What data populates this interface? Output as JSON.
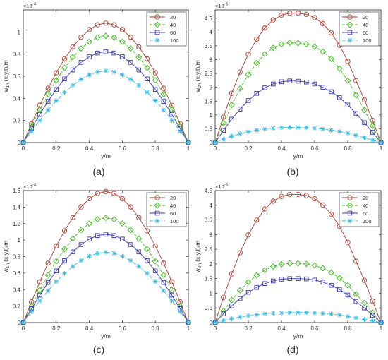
{
  "legend_labels": [
    "20",
    "40",
    "60",
    "100"
  ],
  "series_colors": [
    "#b03a2e",
    "#33bb11",
    "#3535b8",
    "#39b8e0"
  ],
  "series_markers": [
    "circle",
    "diamond",
    "square",
    "asterisk"
  ],
  "chart_data": [
    {
      "type": "line",
      "panel": "(a)",
      "ylabel_main": "w",
      "ylabel_sub": "1h",
      "ylabel_rest": "(x,y,t)/m",
      "xlabel": "y/m",
      "exponent_base": "×10",
      "exponent_power": "-4",
      "xlim": [
        0,
        1
      ],
      "ylim": [
        0,
        1.2
      ],
      "xticks": [
        0,
        0.2,
        0.4,
        0.6,
        0.8,
        1
      ],
      "xtick_labels": [
        "0",
        "0.2",
        "0.4",
        "0.6",
        "0.8",
        "1"
      ],
      "yticks": [
        0,
        0.2,
        0.4,
        0.6,
        0.8,
        1
      ],
      "ytick_labels": [
        "0",
        "0.2",
        "0.4",
        "0.6",
        "0.8",
        "1"
      ],
      "x": [
        0,
        0.05,
        0.1,
        0.15,
        0.2,
        0.25,
        0.3,
        0.35,
        0.4,
        0.45,
        0.5,
        0.55,
        0.6,
        0.65,
        0.7,
        0.75,
        0.8,
        0.85,
        0.9,
        0.95,
        1
      ],
      "series": [
        {
          "name": "20",
          "values": [
            0,
            0.17,
            0.337,
            0.491,
            0.631,
            0.757,
            0.865,
            0.953,
            1.022,
            1.065,
            1.08,
            1.065,
            1.022,
            0.953,
            0.865,
            0.757,
            0.631,
            0.491,
            0.337,
            0.17,
            0
          ]
        },
        {
          "name": "40",
          "values": [
            0,
            0.152,
            0.3,
            0.438,
            0.564,
            0.676,
            0.772,
            0.851,
            0.912,
            0.951,
            0.965,
            0.951,
            0.912,
            0.851,
            0.772,
            0.676,
            0.564,
            0.438,
            0.3,
            0.152,
            0
          ]
        },
        {
          "name": "60",
          "values": [
            0,
            0.129,
            0.255,
            0.373,
            0.48,
            0.576,
            0.657,
            0.725,
            0.776,
            0.81,
            0.822,
            0.81,
            0.776,
            0.725,
            0.657,
            0.576,
            0.48,
            0.373,
            0.255,
            0.129,
            0
          ]
        },
        {
          "name": "100",
          "values": [
            0,
            0.102,
            0.202,
            0.294,
            0.379,
            0.454,
            0.519,
            0.572,
            0.613,
            0.639,
            0.648,
            0.639,
            0.613,
            0.572,
            0.519,
            0.454,
            0.379,
            0.294,
            0.202,
            0.102,
            0
          ]
        }
      ]
    },
    {
      "type": "line",
      "panel": "(b)",
      "ylabel_main": "w",
      "ylabel_sub": "2h",
      "ylabel_rest": "(x,y,t)/m",
      "xlabel": "y/m",
      "exponent_base": "×10",
      "exponent_power": "-5",
      "xlim": [
        0,
        1
      ],
      "ylim": [
        0,
        4.8
      ],
      "xticks": [
        0,
        0.2,
        0.4,
        0.6,
        0.8,
        1
      ],
      "xtick_labels": [
        "0",
        "0.2",
        "0.4",
        "0.6",
        "0.8",
        "1"
      ],
      "yticks": [
        0,
        0.5,
        1,
        1.5,
        2,
        2.5,
        3,
        3.5,
        4,
        4.5
      ],
      "ytick_labels": [
        "0",
        "0.5",
        "1",
        "1.5",
        "2",
        "2.5",
        "3",
        "3.5",
        "4",
        "4.5"
      ],
      "x": [
        0,
        0.05,
        0.1,
        0.15,
        0.2,
        0.25,
        0.3,
        0.35,
        0.4,
        0.45,
        0.5,
        0.55,
        0.6,
        0.65,
        0.7,
        0.75,
        0.8,
        0.85,
        0.9,
        0.95,
        1
      ],
      "series": [
        {
          "name": "20",
          "values": [
            0,
            0.92,
            1.78,
            2.55,
            3.2,
            3.74,
            4.15,
            4.44,
            4.61,
            4.68,
            4.68,
            4.64,
            4.52,
            4.3,
            3.97,
            3.52,
            2.94,
            2.24,
            1.55,
            0.8,
            0
          ]
        },
        {
          "name": "40",
          "values": [
            0,
            0.7,
            1.36,
            1.95,
            2.46,
            2.88,
            3.2,
            3.43,
            3.56,
            3.61,
            3.6,
            3.56,
            3.47,
            3.29,
            3.03,
            2.68,
            2.24,
            1.72,
            1.18,
            0.6,
            0
          ]
        },
        {
          "name": "60",
          "values": [
            0,
            0.44,
            0.85,
            1.21,
            1.52,
            1.78,
            1.98,
            2.12,
            2.2,
            2.23,
            2.22,
            2.19,
            2.12,
            2.0,
            1.84,
            1.63,
            1.36,
            1.05,
            0.72,
            0.37,
            0
          ]
        },
        {
          "name": "100",
          "values": [
            0,
            0.12,
            0.23,
            0.32,
            0.39,
            0.45,
            0.49,
            0.52,
            0.54,
            0.55,
            0.55,
            0.54,
            0.52,
            0.49,
            0.45,
            0.4,
            0.34,
            0.26,
            0.18,
            0.09,
            0
          ]
        }
      ]
    },
    {
      "type": "line",
      "panel": "(c)",
      "ylabel_main": "w",
      "ylabel_sub": "1h",
      "ylabel_rest": "(x,y,t)/m",
      "xlabel": "y/m",
      "exponent_base": "×10",
      "exponent_power": "-4",
      "xlim": [
        0,
        1
      ],
      "ylim": [
        0,
        1.6
      ],
      "xticks": [
        0,
        0.2,
        0.4,
        0.6,
        0.8,
        1
      ],
      "xtick_labels": [
        "0",
        "0.2",
        "0.4",
        "0.6",
        "0.8",
        "1"
      ],
      "yticks": [
        0,
        0.2,
        0.4,
        0.6,
        0.8,
        1,
        1.2,
        1.4,
        1.6
      ],
      "ytick_labels": [
        "0",
        "0.2",
        "0.4",
        "0.6",
        "0.8",
        "1",
        "1.2",
        "1.4",
        "1.6"
      ],
      "x": [
        0,
        0.05,
        0.1,
        0.15,
        0.2,
        0.25,
        0.3,
        0.35,
        0.4,
        0.45,
        0.5,
        0.55,
        0.6,
        0.65,
        0.7,
        0.75,
        0.8,
        0.85,
        0.9,
        0.95,
        1
      ],
      "series": [
        {
          "name": "20",
          "values": [
            0,
            0.25,
            0.494,
            0.722,
            0.929,
            1.113,
            1.272,
            1.402,
            1.502,
            1.566,
            1.588,
            1.566,
            1.502,
            1.402,
            1.272,
            1.113,
            0.929,
            0.722,
            0.494,
            0.25,
            0
          ]
        },
        {
          "name": "40",
          "values": [
            0,
            0.2,
            0.395,
            0.577,
            0.743,
            0.89,
            1.017,
            1.122,
            1.201,
            1.252,
            1.27,
            1.252,
            1.201,
            1.122,
            1.017,
            0.89,
            0.743,
            0.577,
            0.395,
            0.2,
            0
          ]
        },
        {
          "name": "60",
          "values": [
            0,
            0.168,
            0.333,
            0.486,
            0.626,
            0.75,
            0.857,
            0.945,
            1.012,
            1.055,
            1.07,
            1.055,
            1.012,
            0.945,
            0.857,
            0.75,
            0.626,
            0.486,
            0.333,
            0.168,
            0
          ]
        },
        {
          "name": "100",
          "values": [
            0,
            0.134,
            0.265,
            0.387,
            0.498,
            0.597,
            0.682,
            0.752,
            0.805,
            0.84,
            0.852,
            0.84,
            0.805,
            0.752,
            0.682,
            0.597,
            0.498,
            0.387,
            0.265,
            0.134,
            0
          ]
        }
      ]
    },
    {
      "type": "line",
      "panel": "(d)",
      "ylabel_main": "w",
      "ylabel_sub": "2h",
      "ylabel_rest": "(x,y,t)/m",
      "xlabel": "y/m",
      "exponent_base": "×10",
      "exponent_power": "-5",
      "xlim": [
        0,
        1
      ],
      "ylim": [
        0,
        4.5
      ],
      "xticks": [
        0,
        0.2,
        0.4,
        0.6,
        0.8,
        1
      ],
      "xtick_labels": [
        "0",
        "0.2",
        "0.4",
        "0.6",
        "0.8",
        "1"
      ],
      "yticks": [
        0,
        0.5,
        1,
        1.5,
        2,
        2.5,
        3,
        3.5,
        4,
        4.5
      ],
      "ytick_labels": [
        "0",
        "0.5",
        "1",
        "1.5",
        "2",
        "2.5",
        "3",
        "3.5",
        "4",
        "4.5"
      ],
      "x": [
        0,
        0.05,
        0.1,
        0.15,
        0.2,
        0.25,
        0.3,
        0.35,
        0.4,
        0.45,
        0.5,
        0.55,
        0.6,
        0.65,
        0.7,
        0.75,
        0.8,
        0.85,
        0.9,
        0.95,
        1
      ],
      "series": [
        {
          "name": "20",
          "values": [
            0,
            0.86,
            1.66,
            2.38,
            2.99,
            3.49,
            3.87,
            4.14,
            4.3,
            4.37,
            4.37,
            4.33,
            4.22,
            4.01,
            3.7,
            3.28,
            2.74,
            2.09,
            1.44,
            0.73,
            0
          ]
        },
        {
          "name": "40",
          "values": [
            0,
            0.4,
            0.77,
            1.1,
            1.38,
            1.61,
            1.79,
            1.91,
            1.99,
            2.02,
            2.02,
            2.0,
            1.95,
            1.85,
            1.71,
            1.52,
            1.27,
            0.97,
            0.67,
            0.34,
            0
          ]
        },
        {
          "name": "60",
          "values": [
            0,
            0.3,
            0.57,
            0.82,
            1.03,
            1.2,
            1.33,
            1.42,
            1.48,
            1.5,
            1.5,
            1.49,
            1.45,
            1.38,
            1.27,
            1.13,
            0.94,
            0.72,
            0.5,
            0.25,
            0
          ]
        },
        {
          "name": "100",
          "values": [
            0,
            0.07,
            0.13,
            0.19,
            0.23,
            0.27,
            0.3,
            0.32,
            0.33,
            0.34,
            0.34,
            0.34,
            0.33,
            0.31,
            0.29,
            0.26,
            0.21,
            0.16,
            0.11,
            0.06,
            0
          ]
        }
      ]
    }
  ]
}
